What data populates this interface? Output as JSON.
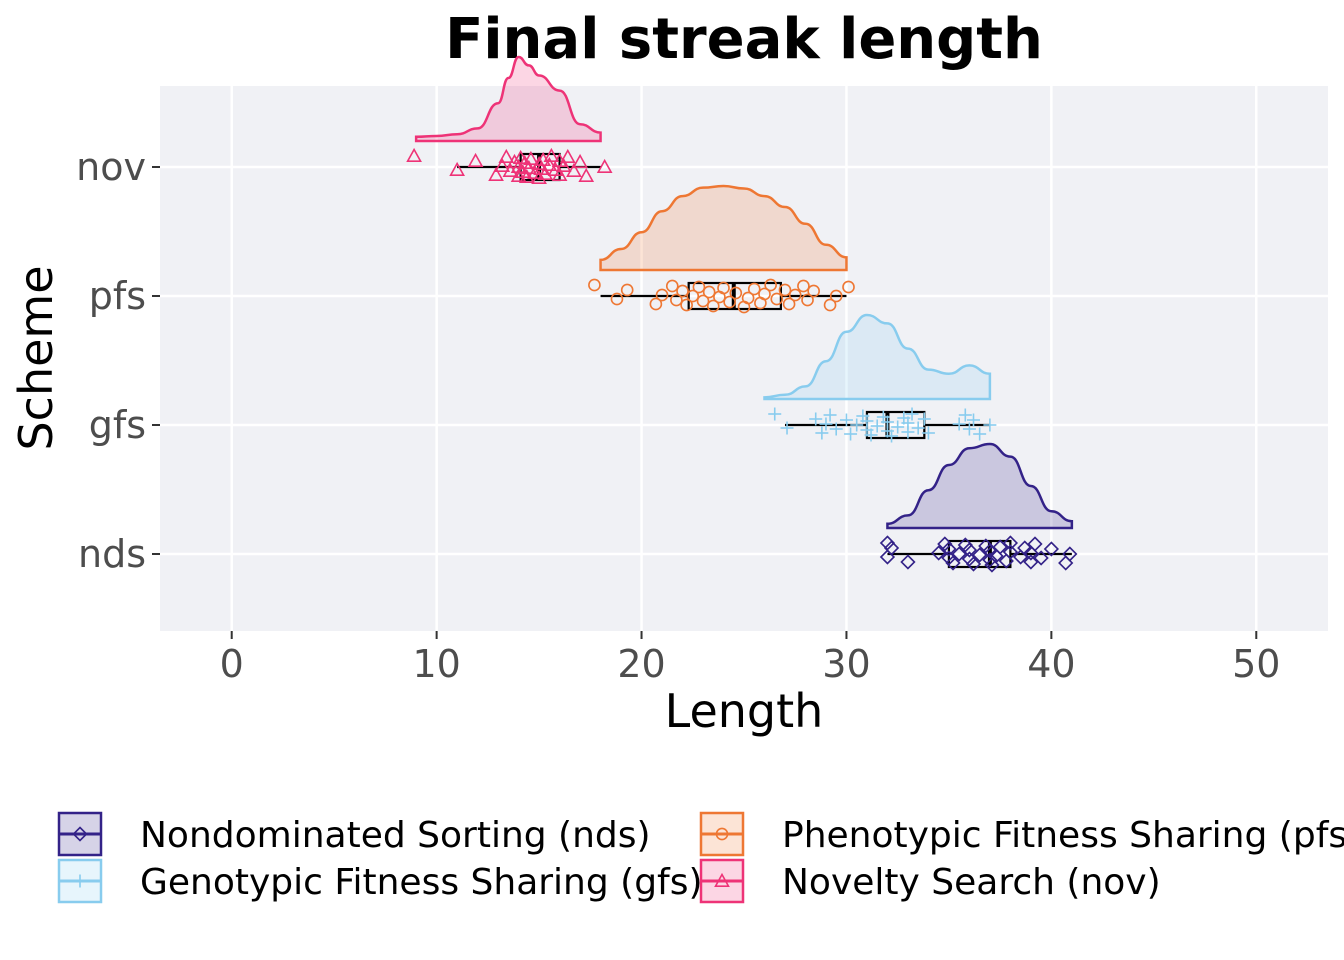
{
  "chart_data": {
    "type": "raincloud",
    "title": "Final streak length",
    "xlabel": "Length",
    "ylabel": "Scheme",
    "xlim": [
      -3.5,
      53.5
    ],
    "xticks": [
      0,
      10,
      20,
      30,
      40,
      50
    ],
    "grid": true,
    "legend_position": "bottom",
    "categories": [
      "nds",
      "gfs",
      "pfs",
      "nov"
    ],
    "series": [
      {
        "key": "nds",
        "name": "Nondominated Sorting (nds)",
        "color": "#332288",
        "marker": "diamond",
        "box": {
          "whisker_low": 32,
          "q1": 35,
          "median": 37,
          "q3": 38,
          "whisker_high": 41
        },
        "density": {
          "x": [
            32,
            33,
            34,
            35,
            36,
            37,
            38,
            39,
            40,
            41
          ],
          "y": [
            0.05,
            0.15,
            0.45,
            0.75,
            0.95,
            1.0,
            0.85,
            0.5,
            0.2,
            0.08
          ]
        },
        "points": [
          32,
          32,
          32.2,
          33,
          34.5,
          34.8,
          35,
          35,
          35.2,
          35.5,
          35.8,
          36,
          36,
          36.2,
          36.5,
          36.8,
          37,
          37,
          37.1,
          37.3,
          37.5,
          37.8,
          38,
          38,
          38.5,
          38.7,
          39,
          39,
          39.2,
          39.5,
          40,
          40.7,
          40.9
        ]
      },
      {
        "key": "gfs",
        "name": "Genotypic Fitness Sharing (gfs)",
        "color": "#88CCEE",
        "marker": "plus",
        "box": {
          "whisker_low": 27,
          "q1": 31,
          "median": 32,
          "q3": 33.8,
          "whisker_high": 37
        },
        "density": {
          "x": [
            26,
            27,
            28,
            29,
            30,
            31,
            32,
            33,
            34,
            35,
            36,
            37
          ],
          "y": [
            0.02,
            0.05,
            0.15,
            0.45,
            0.8,
            1.0,
            0.9,
            0.6,
            0.35,
            0.3,
            0.4,
            0.3
          ]
        },
        "points": [
          26.5,
          27.1,
          28.5,
          28.8,
          29,
          29.2,
          29.5,
          30,
          30.2,
          30.5,
          30.8,
          31,
          31,
          31.2,
          31.5,
          31.8,
          32,
          32,
          32.2,
          32.5,
          32.8,
          33,
          33,
          33.2,
          33.5,
          33.8,
          34,
          35.5,
          35.8,
          36,
          36.2,
          36.5,
          37
        ]
      },
      {
        "key": "pfs",
        "name": "Phenotypic Fitness Sharing (pfs)",
        "color": "#EE7733",
        "marker": "circle",
        "box": {
          "whisker_low": 18,
          "q1": 22.3,
          "median": 24.5,
          "q3": 26.8,
          "whisker_high": 30
        },
        "density": {
          "x": [
            18,
            19,
            20,
            21,
            22,
            23,
            24,
            25,
            26,
            27,
            28,
            29,
            30
          ],
          "y": [
            0.12,
            0.25,
            0.45,
            0.7,
            0.88,
            0.98,
            1.0,
            0.97,
            0.88,
            0.75,
            0.55,
            0.3,
            0.15
          ]
        },
        "points": [
          17.7,
          18.8,
          19.3,
          20.7,
          21,
          21.5,
          21.7,
          22,
          22.2,
          22.5,
          22.8,
          23,
          23.3,
          23.5,
          23.8,
          24,
          24.3,
          24.6,
          25,
          25.2,
          25.5,
          25.8,
          26,
          26.3,
          26.6,
          27,
          27.2,
          27.5,
          27.9,
          28.1,
          28.4,
          29.2,
          29.5,
          30.1
        ]
      },
      {
        "key": "nov",
        "name": "Novelty Search (nov)",
        "color": "#EE3377",
        "marker": "triangle",
        "box": {
          "whisker_low": 11,
          "q1": 14.1,
          "median": 15,
          "q3": 16,
          "whisker_high": 18
        },
        "density": {
          "x": [
            9,
            10,
            11,
            12,
            13,
            13.5,
            14,
            14.5,
            15,
            16,
            17,
            18
          ],
          "y": [
            0.05,
            0.06,
            0.08,
            0.15,
            0.45,
            0.75,
            1.0,
            0.9,
            0.78,
            0.6,
            0.2,
            0.1
          ]
        },
        "points": [
          8.9,
          11,
          11.9,
          12.9,
          13.2,
          13.4,
          13.6,
          13.8,
          14,
          14,
          14.1,
          14.2,
          14.3,
          14.4,
          14.5,
          14.6,
          14.8,
          15,
          15,
          15.1,
          15.2,
          15.3,
          15.5,
          15.6,
          15.8,
          16,
          16,
          16.2,
          16.4,
          16.7,
          17,
          17.3,
          18.2
        ]
      }
    ]
  }
}
